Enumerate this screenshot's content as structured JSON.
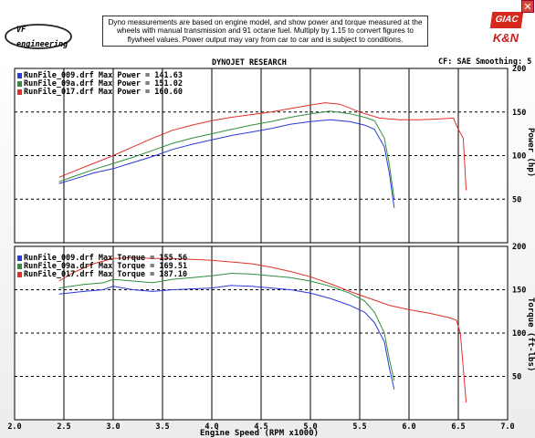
{
  "header": {
    "disclaimer": "Dyno measurements are based on engine model, and show power and torque measured at the wheels with manual transmission and 91 octane fuel. Multiply by 1.15 to convert figures to flywheel values. Power output may vary from car to car and is subject to conditions.",
    "dyno_title": "DYNOJET RESEARCH",
    "cf_info": "CF: SAE  Smoothing: 5",
    "logo_text_main": "VF",
    "logo_text_sub": "engineering",
    "brand_giac": "GIAC",
    "brand_kn": "K&N",
    "close_glyph": "✕"
  },
  "chart_data": [
    {
      "type": "line",
      "title": "",
      "ylabel": "Power (hp)",
      "xlabel": "Engine Speed (RPM x1000)",
      "xlim": [
        2.0,
        7.0
      ],
      "ylim": [
        0,
        200
      ],
      "yticks": [
        50,
        100,
        150,
        200
      ],
      "grid": true,
      "legend_position": "top-left",
      "series": [
        {
          "name": "RunFile_009.drf Max Power = 141.63",
          "color": "#2a3ad6",
          "points": [
            [
              2.45,
              68
            ],
            [
              2.6,
              73
            ],
            [
              2.8,
              80
            ],
            [
              3.0,
              85
            ],
            [
              3.2,
              92
            ],
            [
              3.4,
              99
            ],
            [
              3.6,
              107
            ],
            [
              3.8,
              113
            ],
            [
              4.0,
              118
            ],
            [
              4.2,
              123
            ],
            [
              4.4,
              127
            ],
            [
              4.6,
              131
            ],
            [
              4.8,
              136
            ],
            [
              5.0,
              139
            ],
            [
              5.2,
              141
            ],
            [
              5.4,
              139
            ],
            [
              5.55,
              135
            ],
            [
              5.65,
              130
            ],
            [
              5.75,
              110
            ],
            [
              5.8,
              80
            ],
            [
              5.85,
              40
            ]
          ]
        },
        {
          "name": "RunFile_09a.drf Max Power = 151.02",
          "color": "#2f8f3a",
          "points": [
            [
              2.45,
              70
            ],
            [
              2.6,
              76
            ],
            [
              2.8,
              84
            ],
            [
              3.0,
              91
            ],
            [
              3.2,
              98
            ],
            [
              3.4,
              106
            ],
            [
              3.6,
              114
            ],
            [
              3.8,
              120
            ],
            [
              4.0,
              125
            ],
            [
              4.2,
              130
            ],
            [
              4.4,
              135
            ],
            [
              4.6,
              139
            ],
            [
              4.8,
              144
            ],
            [
              5.0,
              148
            ],
            [
              5.2,
              151
            ],
            [
              5.4,
              148
            ],
            [
              5.55,
              144
            ],
            [
              5.65,
              140
            ],
            [
              5.75,
              120
            ],
            [
              5.8,
              90
            ],
            [
              5.85,
              50
            ]
          ]
        },
        {
          "name": "RunFile_017.drf Max Power = 160.60",
          "color": "#e0302a",
          "points": [
            [
              2.45,
              75
            ],
            [
              2.6,
              82
            ],
            [
              2.8,
              91
            ],
            [
              3.0,
              100
            ],
            [
              3.2,
              110
            ],
            [
              3.4,
              120
            ],
            [
              3.6,
              129
            ],
            [
              3.8,
              135
            ],
            [
              4.0,
              140
            ],
            [
              4.2,
              144
            ],
            [
              4.4,
              147
            ],
            [
              4.6,
              150
            ],
            [
              4.8,
              154
            ],
            [
              5.0,
              158
            ],
            [
              5.15,
              160.6
            ],
            [
              5.3,
              159
            ],
            [
              5.5,
              150
            ],
            [
              5.7,
              143
            ],
            [
              5.9,
              141
            ],
            [
              6.1,
              141
            ],
            [
              6.3,
              142
            ],
            [
              6.45,
              143
            ],
            [
              6.5,
              130
            ],
            [
              6.55,
              120
            ],
            [
              6.58,
              60
            ]
          ]
        }
      ]
    },
    {
      "type": "line",
      "title": "",
      "ylabel": "Torque (ft-lbs)",
      "xlabel": "Engine Speed (RPM x1000)",
      "xlim": [
        2.0,
        7.0
      ],
      "ylim": [
        0,
        200
      ],
      "yticks": [
        50,
        100,
        150,
        200
      ],
      "xticks": [
        "2.0",
        "2.5",
        "3.0",
        "3.5",
        "4.0",
        "4.5",
        "5.0",
        "5.5",
        "6.0",
        "6.5",
        "7.0"
      ],
      "grid": true,
      "legend_position": "top-left",
      "series": [
        {
          "name": "RunFile_009.drf Max Torque = 155.56",
          "color": "#2a3ad6",
          "points": [
            [
              2.45,
              145
            ],
            [
              2.7,
              148
            ],
            [
              2.9,
              150
            ],
            [
              3.0,
              154
            ],
            [
              3.2,
              150
            ],
            [
              3.4,
              148
            ],
            [
              3.6,
              150
            ],
            [
              3.8,
              151
            ],
            [
              4.0,
              152
            ],
            [
              4.2,
              155
            ],
            [
              4.4,
              154
            ],
            [
              4.6,
              152
            ],
            [
              4.8,
              150
            ],
            [
              5.0,
              146
            ],
            [
              5.2,
              140
            ],
            [
              5.4,
              132
            ],
            [
              5.55,
              124
            ],
            [
              5.65,
              112
            ],
            [
              5.75,
              90
            ],
            [
              5.8,
              60
            ],
            [
              5.85,
              35
            ]
          ]
        },
        {
          "name": "RunFile_09a.drf Max Torque = 169.51",
          "color": "#2f8f3a",
          "points": [
            [
              2.45,
              152
            ],
            [
              2.7,
              156
            ],
            [
              2.9,
              158
            ],
            [
              3.0,
              162
            ],
            [
              3.2,
              160
            ],
            [
              3.4,
              158
            ],
            [
              3.6,
              162
            ],
            [
              3.8,
              164
            ],
            [
              4.0,
              166
            ],
            [
              4.2,
              169
            ],
            [
              4.4,
              168
            ],
            [
              4.6,
              166
            ],
            [
              4.8,
              164
            ],
            [
              5.0,
              160
            ],
            [
              5.2,
              154
            ],
            [
              5.4,
              146
            ],
            [
              5.55,
              137
            ],
            [
              5.65,
              124
            ],
            [
              5.75,
              100
            ],
            [
              5.8,
              70
            ],
            [
              5.85,
              45
            ]
          ]
        },
        {
          "name": "RunFile_017.drf Max Torque = 187.10",
          "color": "#e0302a",
          "points": [
            [
              2.45,
              160
            ],
            [
              2.6,
              170
            ],
            [
              2.8,
              180
            ],
            [
              3.0,
              186
            ],
            [
              3.2,
              187
            ],
            [
              3.4,
              186
            ],
            [
              3.6,
              186
            ],
            [
              3.8,
              185
            ],
            [
              4.0,
              184
            ],
            [
              4.2,
              182
            ],
            [
              4.4,
              180
            ],
            [
              4.6,
              176
            ],
            [
              4.8,
              171
            ],
            [
              5.0,
              165
            ],
            [
              5.2,
              157
            ],
            [
              5.4,
              148
            ],
            [
              5.6,
              140
            ],
            [
              5.8,
              132
            ],
            [
              6.0,
              127
            ],
            [
              6.2,
              123
            ],
            [
              6.4,
              118
            ],
            [
              6.48,
              115
            ],
            [
              6.52,
              100
            ],
            [
              6.55,
              60
            ],
            [
              6.58,
              20
            ]
          ]
        }
      ]
    }
  ]
}
